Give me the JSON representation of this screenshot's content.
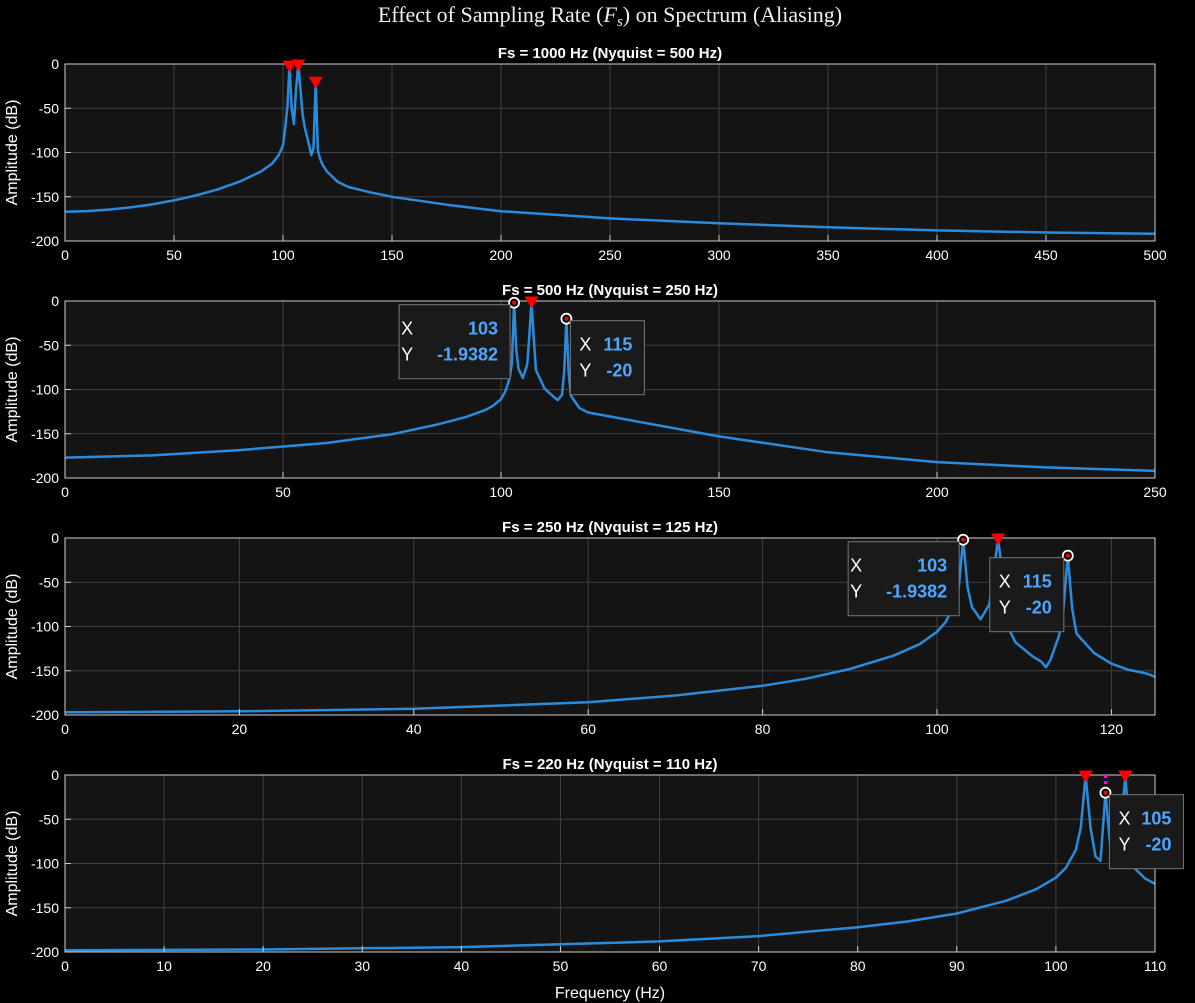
{
  "figure": {
    "title_prefix": "Effect of Sampling Rate (",
    "title_symbol": "F",
    "title_sub": "s",
    "title_suffix": ") on Spectrum (Aliasing)",
    "xlabel_bottom": "Frequency (Hz)"
  },
  "colors": {
    "background": "#000000",
    "axes_bg": "#141414",
    "grid": "#404040",
    "line": "#2a8bdb",
    "peak_marker": "#ff0000",
    "datatip_value": "#4da6ff",
    "accent_magenta": "#ff00ff"
  },
  "chart_data": [
    {
      "type": "line",
      "title": "Fs = 1000 Hz  (Nyquist = 500 Hz)",
      "xlabel": "",
      "ylabel": "Amplitude (dB)",
      "xlim": [
        0,
        500
      ],
      "ylim": [
        -200,
        0
      ],
      "xticks": [
        0,
        50,
        100,
        150,
        200,
        250,
        300,
        350,
        400,
        450,
        500
      ],
      "yticks": [
        0,
        -50,
        -100,
        -150,
        -200
      ],
      "grid": true,
      "series": [
        {
          "x": [
            0,
            10,
            20,
            30,
            40,
            50,
            60,
            70,
            80,
            90,
            95,
            98,
            100,
            101,
            102,
            103,
            104,
            105,
            106,
            107,
            108,
            109,
            110,
            111,
            112,
            113,
            114,
            115,
            116,
            117,
            118,
            120,
            125,
            130,
            140,
            150,
            175,
            200,
            250,
            300,
            350,
            400,
            450,
            500
          ],
          "y": [
            -167,
            -166.2,
            -164.5,
            -162,
            -158.7,
            -154,
            -148.6,
            -141.7,
            -133,
            -121.4,
            -112.5,
            -103,
            -92,
            -72,
            -48,
            -2,
            -50,
            -68,
            -28,
            -0.5,
            -28,
            -57,
            -72,
            -82,
            -92,
            -103,
            -95,
            -20,
            -98,
            -107,
            -113,
            -121,
            -133,
            -139,
            -145,
            -150,
            -159,
            -166.3,
            -174.5,
            -180,
            -184.5,
            -188,
            -190.4,
            -191.7
          ]
        }
      ],
      "peak_markers": [
        {
          "x": 103,
          "y": -2
        },
        {
          "x": 107,
          "y": -0.5
        },
        {
          "x": 115,
          "y": -20
        }
      ],
      "datatips": []
    },
    {
      "type": "line",
      "title": "Fs = 500 Hz  (Nyquist = 250 Hz)",
      "xlabel": "",
      "ylabel": "Amplitude (dB)",
      "xlim": [
        0,
        250
      ],
      "ylim": [
        -200,
        0
      ],
      "xticks": [
        0,
        50,
        100,
        150,
        200,
        250
      ],
      "yticks": [
        0,
        -50,
        -100,
        -150,
        -200
      ],
      "grid": true,
      "series": [
        {
          "x": [
            0,
            20,
            40,
            60,
            75,
            85,
            92,
            96,
            98,
            100,
            101,
            102,
            102.5,
            103,
            103.5,
            104,
            105,
            106,
            106.5,
            107,
            107.5,
            108,
            110,
            112,
            113,
            114,
            114.5,
            115,
            115.5,
            116,
            118,
            120,
            130,
            150,
            175,
            200,
            225,
            250
          ],
          "y": [
            -177,
            -174.5,
            -168.5,
            -160.5,
            -150.5,
            -140,
            -131,
            -124,
            -119,
            -111,
            -102,
            -87,
            -70,
            -1.9,
            -55,
            -76,
            -87,
            -72,
            -40,
            -0.5,
            -40,
            -78,
            -99,
            -108,
            -112,
            -106,
            -80,
            -20,
            -80,
            -107,
            -121,
            -126,
            -135,
            -153,
            -171,
            -182,
            -188,
            -192
          ]
        }
      ],
      "peak_markers": [
        {
          "x": 107,
          "y": -0.5
        }
      ],
      "datatips": [
        {
          "x": 103,
          "y": -1.9382,
          "x_label": "X",
          "y_label": "Y",
          "x_text": "103",
          "y_text": "-1.9382",
          "side": "left"
        },
        {
          "x": 115,
          "y": -20,
          "x_label": "X",
          "y_label": "Y",
          "x_text": "115",
          "y_text": "-20",
          "side": "right"
        }
      ]
    },
    {
      "type": "line",
      "title": "Fs = 250 Hz  (Nyquist = 125 Hz)",
      "xlabel": "",
      "ylabel": "Amplitude (dB)",
      "xlim": [
        0,
        125
      ],
      "ylim": [
        -200,
        0
      ],
      "xticks": [
        0,
        20,
        40,
        60,
        80,
        100,
        120
      ],
      "yticks": [
        0,
        -50,
        -100,
        -150,
        -200
      ],
      "grid": true,
      "series": [
        {
          "x": [
            0,
            20,
            40,
            60,
            70,
            80,
            85,
            90,
            95,
            98,
            100,
            101,
            102,
            102.5,
            103,
            103.5,
            104,
            105,
            106,
            106.5,
            107,
            107.5,
            108,
            109,
            110,
            111,
            112,
            112.5,
            113,
            114,
            114.5,
            115,
            115.5,
            116,
            118,
            120,
            122,
            124,
            125
          ],
          "y": [
            -197,
            -195.8,
            -193,
            -185.5,
            -178,
            -167,
            -159,
            -148,
            -133,
            -120,
            -106,
            -95,
            -75,
            -55,
            -1.9,
            -55,
            -78,
            -92,
            -75,
            -40,
            -0.5,
            -40,
            -98,
            -118,
            -126,
            -134,
            -140,
            -146,
            -138,
            -110,
            -80,
            -20,
            -80,
            -108,
            -130,
            -142,
            -149,
            -153,
            -157
          ]
        }
      ],
      "peak_markers": [
        {
          "x": 107,
          "y": -0.5
        }
      ],
      "datatips": [
        {
          "x": 103,
          "y": -1.9382,
          "x_label": "X",
          "y_label": "Y",
          "x_text": "103",
          "y_text": "-1.9382",
          "side": "left"
        },
        {
          "x": 115,
          "y": -20,
          "x_label": "X",
          "y_label": "Y",
          "x_text": "115",
          "y_text": "-20",
          "side": "left"
        }
      ]
    },
    {
      "type": "line",
      "title": "Fs = 220 Hz  (Nyquist = 110 Hz)",
      "xlabel": "Frequency (Hz)",
      "ylabel": "Amplitude (dB)",
      "xlim": [
        0,
        110
      ],
      "ylim": [
        -200,
        0
      ],
      "xticks": [
        0,
        10,
        20,
        30,
        40,
        50,
        60,
        70,
        80,
        90,
        100,
        110
      ],
      "yticks": [
        0,
        -50,
        -100,
        -150,
        -200
      ],
      "grid": true,
      "series": [
        {
          "x": [
            0,
            20,
            40,
            60,
            70,
            80,
            85,
            90,
            95,
            98,
            100,
            101,
            102,
            102.5,
            103,
            103.5,
            104,
            104.5,
            105,
            105.5,
            106,
            106.5,
            107,
            107.5,
            108,
            109,
            110
          ],
          "y": [
            -198,
            -197.2,
            -194.5,
            -188,
            -182,
            -172,
            -165.5,
            -156.5,
            -142,
            -129,
            -116,
            -105,
            -85,
            -60,
            -0.5,
            -60,
            -92,
            -97,
            -20,
            -82,
            -100,
            -70,
            -0.5,
            -70,
            -106,
            -117,
            -123
          ]
        }
      ],
      "peak_markers": [
        {
          "x": 103,
          "y": -0.5
        },
        {
          "x": 107,
          "y": -0.5
        }
      ],
      "datatips": [
        {
          "x": 105,
          "y": -20,
          "x_label": "X",
          "y_label": "Y",
          "x_text": "105",
          "y_text": "-20",
          "side": "right"
        }
      ]
    }
  ]
}
